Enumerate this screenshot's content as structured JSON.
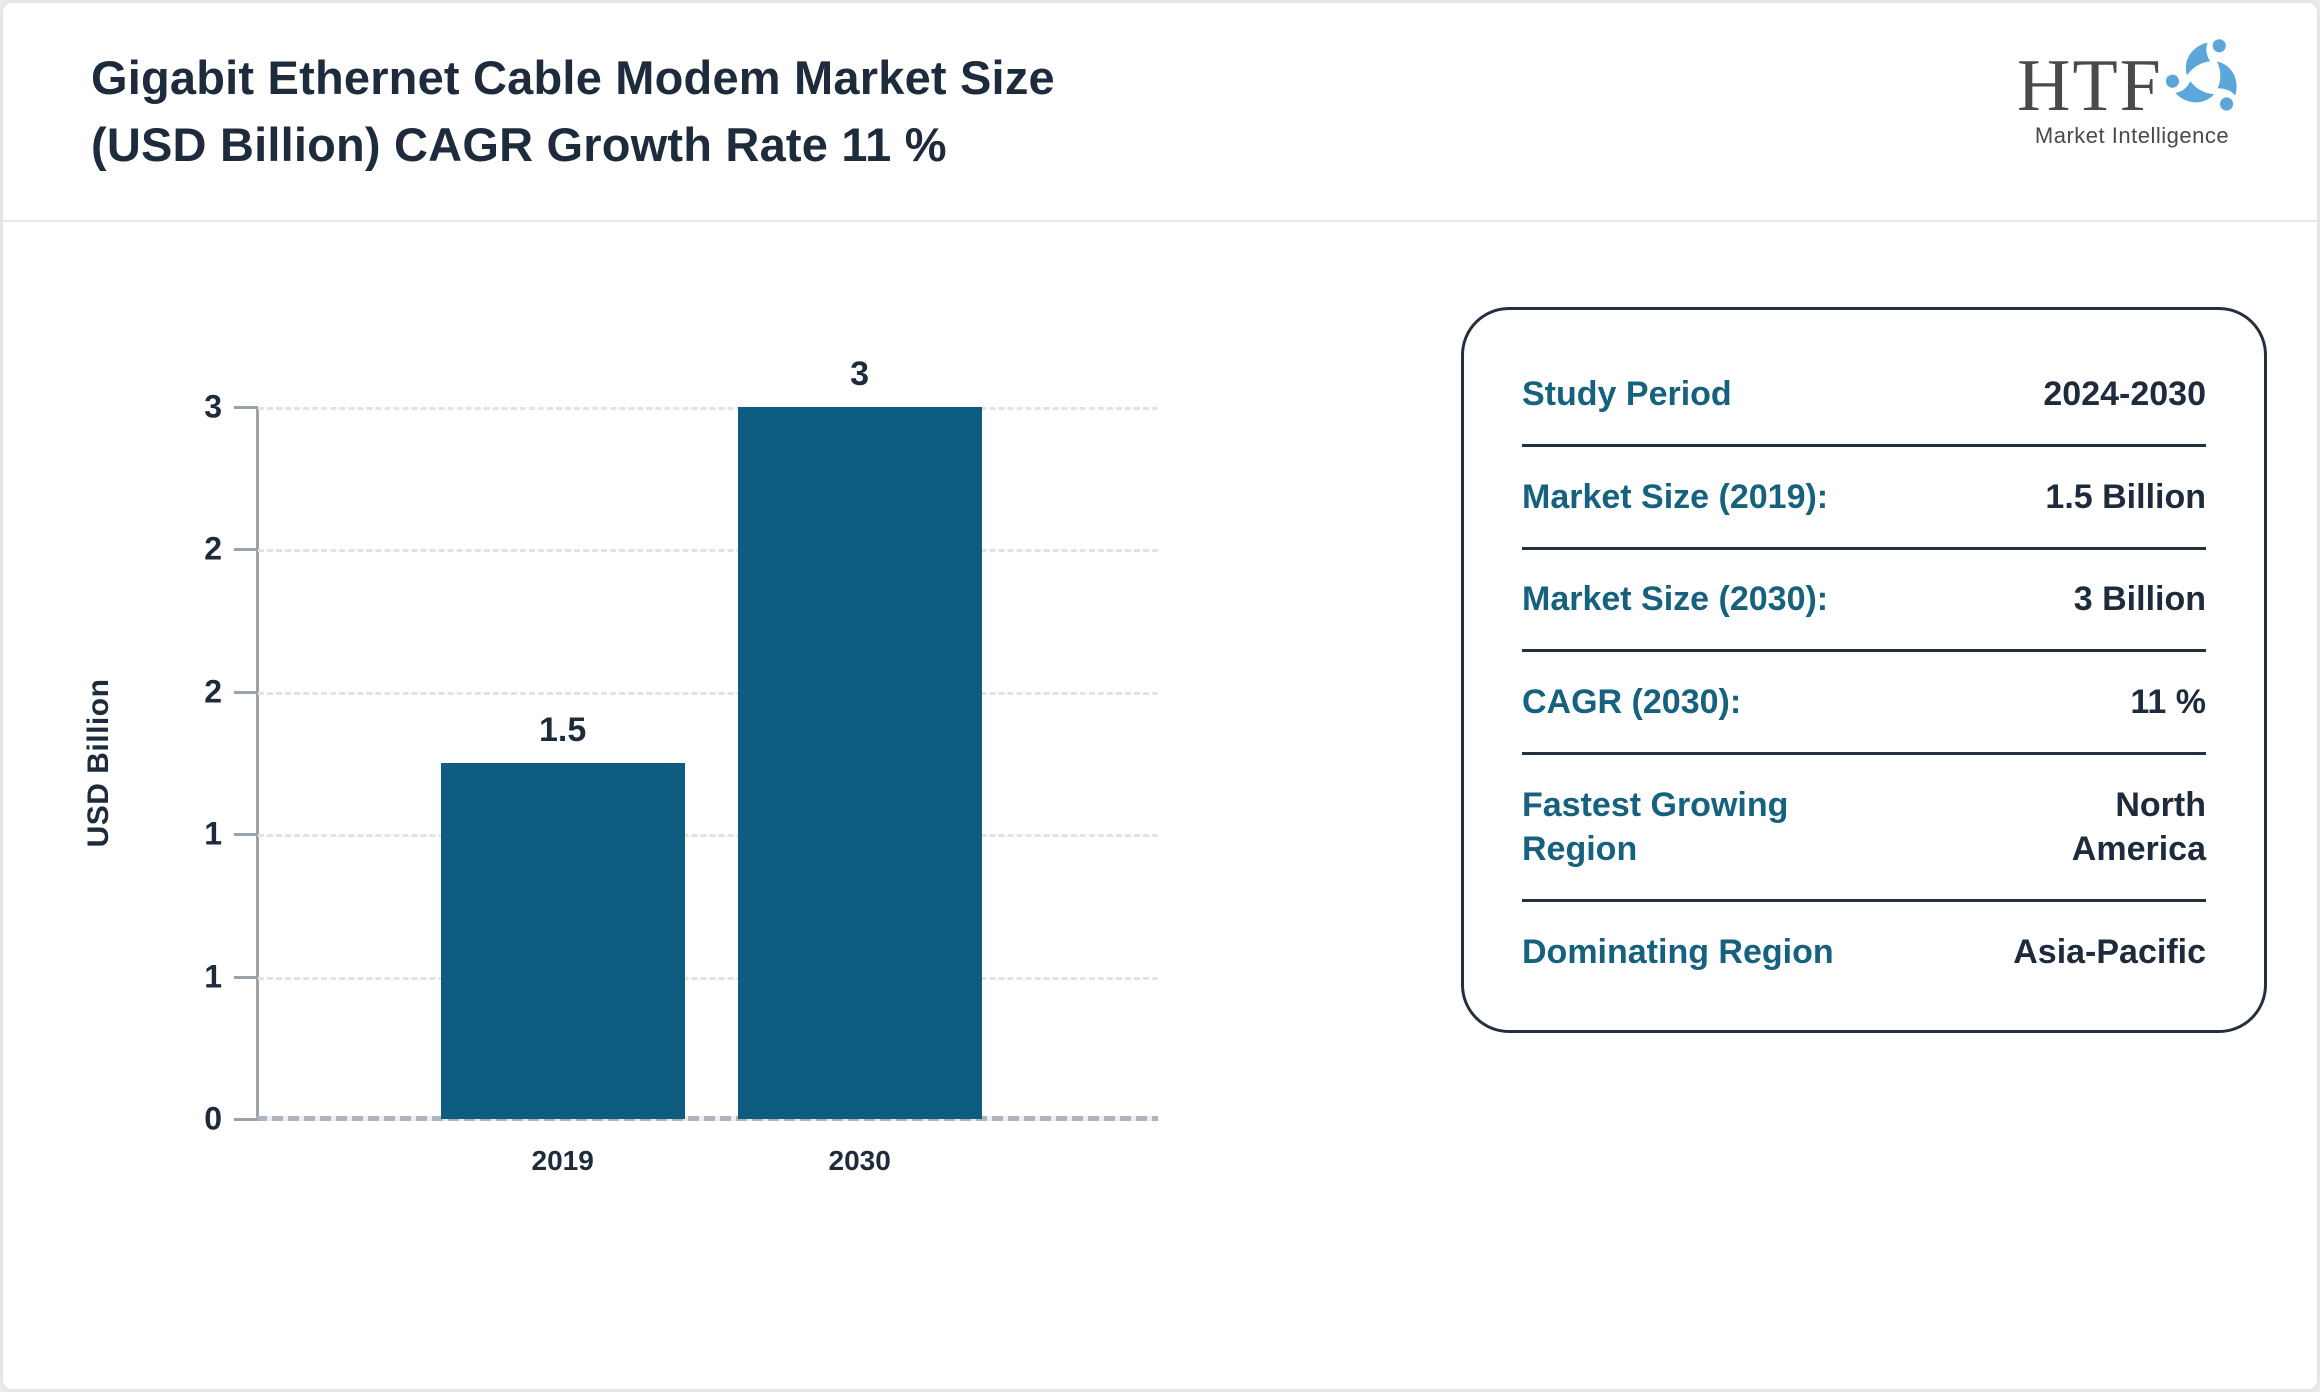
{
  "header": {
    "title": "Gigabit Ethernet Cable Modem Market Size\n(USD Billion) CAGR Growth Rate 11 %",
    "logo": {
      "text": "HTF",
      "subtext": "Market Intelligence",
      "swirl_colors": [
        "#5ba7d9",
        "#3c7ca9",
        "#b5c0ca"
      ]
    }
  },
  "chart_data": {
    "type": "bar",
    "title": "Gigabit Ethernet Cable Modem Market Size (USD Billion) CAGR Growth Rate 11 %",
    "categories": [
      "2019",
      "2030"
    ],
    "values": [
      1.5,
      3
    ],
    "bar_labels": [
      "1.5",
      "3"
    ],
    "xlabel": "",
    "ylabel": "USD Billion",
    "ylim": [
      0,
      3
    ],
    "y_tick_values": [
      0,
      0.6,
      1.2,
      1.8,
      2.4,
      3
    ],
    "y_tick_labels": [
      "0",
      "1",
      "1",
      "2",
      "2",
      "3"
    ],
    "grid": "horizontal-dashed",
    "legend": "none",
    "bar_color": "#0f5c81"
  },
  "info_panel": {
    "rows": [
      {
        "label": "Study Period",
        "value": "2024-2030"
      },
      {
        "label": "Market Size (2019):",
        "value": "1.5 Billion"
      },
      {
        "label": "Market Size (2030):",
        "value": "3 Billion"
      },
      {
        "label": "CAGR (2030):",
        "value": "11 %"
      },
      {
        "label": "Fastest Growing Region",
        "value": "North America"
      },
      {
        "label": "Dominating Region",
        "value": "Asia-Pacific"
      }
    ]
  },
  "colors": {
    "bar": "#0f5c81",
    "label_teal": "#15617e",
    "text_dark": "#1e2b3c",
    "axis_gray": "#9aa2ac",
    "panel_border": "#25303f",
    "frame_border": "#e4e6ea"
  }
}
